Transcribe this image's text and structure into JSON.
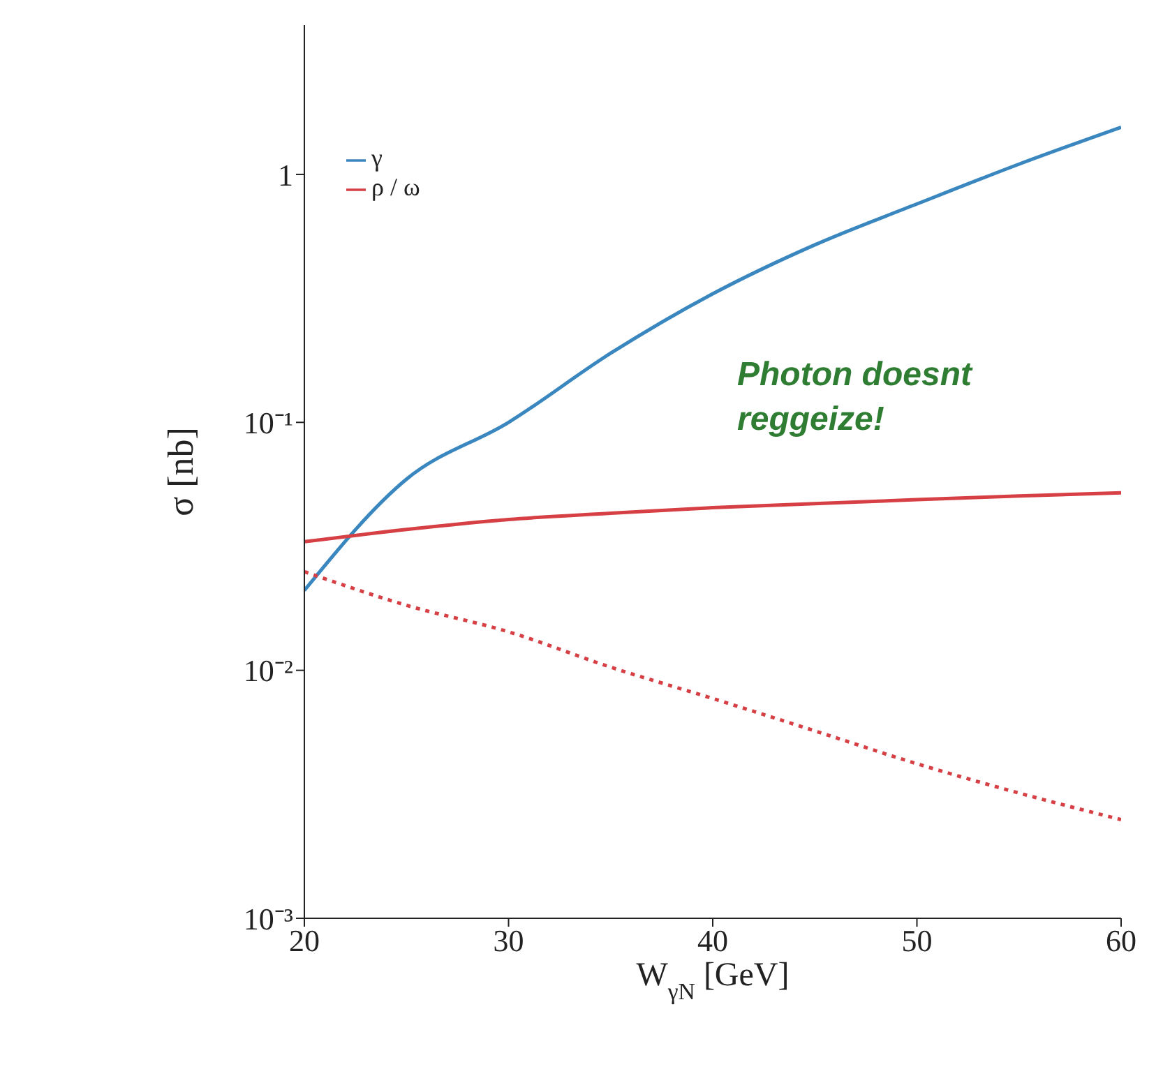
{
  "chart_data": {
    "type": "line",
    "xlabel": "W$_{γN}$ [GeV]",
    "ylabel": "σ [nb]",
    "x": [
      20,
      25,
      30,
      35,
      40,
      45,
      50,
      55,
      60
    ],
    "series": [
      {
        "name": "γ",
        "color": "#3a87c0",
        "values": [
          0.021,
          0.059,
          0.1,
          0.19,
          0.33,
          0.52,
          0.76,
          1.1,
          1.55
        ]
      },
      {
        "name": "ρ / ω",
        "color": "#d64045",
        "values": [
          0.033,
          0.037,
          0.0406,
          0.043,
          0.0453,
          0.047,
          0.0488,
          0.0505,
          0.052
        ]
      },
      {
        "color": "#d64045",
        "line_style": "dotted",
        "values": [
          0.025,
          0.0183,
          0.0143,
          0.0103,
          0.0077,
          0.0057,
          0.0042,
          0.0032,
          0.0025
        ]
      }
    ],
    "log": "y",
    "xlim": [
      20,
      60
    ],
    "xticks": [
      20,
      30,
      40,
      50,
      60
    ],
    "ylim": [
      0.001,
      4
    ],
    "yticks": [
      {
        "value": 0.001,
        "label": "10⁻³"
      },
      {
        "value": 0.01,
        "label": "10⁻²"
      },
      {
        "value": 0.1,
        "label": "10⁻¹"
      },
      1
    ],
    "grid": false,
    "legend": "top left",
    "marker": "none",
    "line_style": "solid",
    "annotations": [
      "Photon doesnt reggeize!"
    ]
  }
}
